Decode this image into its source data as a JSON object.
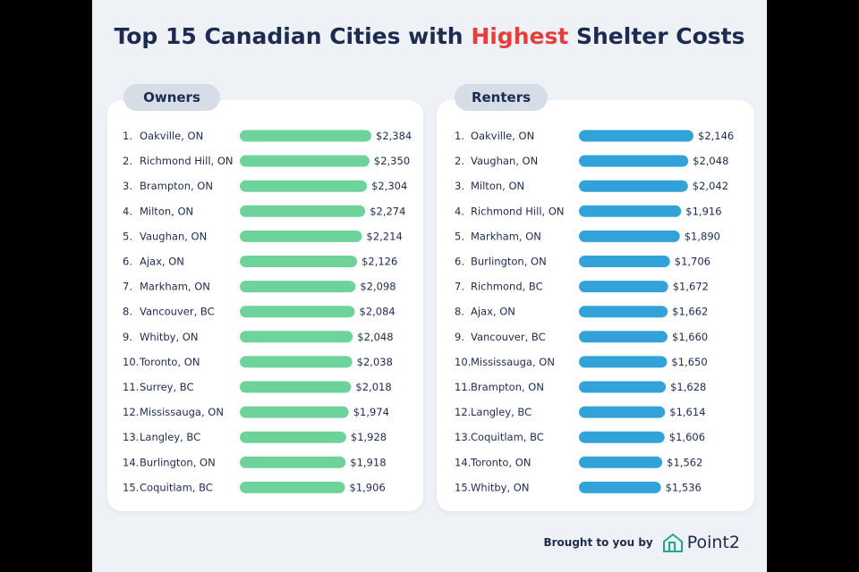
{
  "title": {
    "prefix": "Top 15 Canadian Cities with ",
    "highlight": "Highest",
    "suffix": " Shelter Costs"
  },
  "colors": {
    "owners": "#6dd39a",
    "renters": "#33a2d8",
    "highlight": "#e63d3d",
    "text": "#1d2b4f"
  },
  "footer": {
    "brought_by": "Brought to you by",
    "brand": "Point2"
  },
  "chart_data": [
    {
      "type": "bar",
      "orientation": "horizontal",
      "title": "Owners",
      "categories": [
        "Oakville, ON",
        "Richmond Hill, ON",
        "Brampton, ON",
        "Milton, ON",
        "Vaughan, ON",
        "Ajax, ON",
        "Markham, ON",
        "Vancouver, BC",
        "Whitby, ON",
        "Toronto, ON",
        "Surrey, BC",
        "Mississauga, ON",
        "Langley, BC",
        "Burlington, ON",
        "Coquitlam, BC"
      ],
      "values": [
        2384,
        2350,
        2304,
        2274,
        2214,
        2126,
        2098,
        2084,
        2048,
        2038,
        2018,
        1974,
        1928,
        1918,
        1906
      ],
      "labels": [
        "$2,384",
        "$2,350",
        "$2,304",
        "$2,274",
        "$2,214",
        "$2,126",
        "$2,098",
        "$2,084",
        "$2,048",
        "$2,038",
        "$2,018",
        "$1,974",
        "$1,928",
        "$1,918",
        "$1,906"
      ],
      "xlim": [
        0,
        2384
      ]
    },
    {
      "type": "bar",
      "orientation": "horizontal",
      "title": "Renters",
      "categories": [
        "Oakville, ON",
        "Vaughan, ON",
        "Milton, ON",
        "Richmond Hill, ON",
        "Markham, ON",
        "Burlington, ON",
        "Richmond, BC",
        "Ajax, ON",
        "Vancouver, BC",
        "Mississauga, ON",
        "Brampton, ON",
        "Langley, BC",
        "Coquitlam, BC",
        "Toronto, ON",
        "Whitby, ON"
      ],
      "values": [
        2146,
        2048,
        2042,
        1916,
        1890,
        1706,
        1672,
        1662,
        1660,
        1650,
        1628,
        1614,
        1606,
        1562,
        1536
      ],
      "labels": [
        "$2,146",
        "$2,048",
        "$2,042",
        "$1,916",
        "$1,890",
        "$1,706",
        "$1,672",
        "$1,662",
        "$1,660",
        "$1,650",
        "$1,628",
        "$1,614",
        "$1,606",
        "$1,562",
        "$1,536"
      ],
      "xlim": [
        0,
        2146
      ]
    }
  ]
}
